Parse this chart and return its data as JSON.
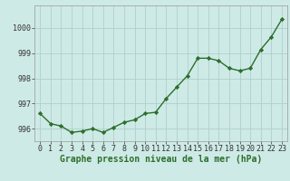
{
  "x": [
    0,
    1,
    2,
    3,
    4,
    5,
    6,
    7,
    8,
    9,
    10,
    11,
    12,
    13,
    14,
    15,
    16,
    17,
    18,
    19,
    20,
    21,
    22,
    23
  ],
  "y": [
    996.6,
    996.2,
    996.1,
    995.85,
    995.9,
    996.0,
    995.85,
    996.05,
    996.25,
    996.35,
    996.6,
    996.65,
    997.2,
    997.65,
    998.1,
    998.8,
    998.8,
    998.7,
    998.4,
    998.3,
    998.4,
    999.15,
    999.65,
    1000.35
  ],
  "line_color": "#2d6e2d",
  "marker": "D",
  "marker_size": 2.2,
  "line_width": 1.0,
  "background_color": "#ceeae6",
  "grid_color": "#b0cfcc",
  "ylabel_ticks": [
    996,
    997,
    998,
    999,
    1000
  ],
  "xlabel": "Graphe pression niveau de la mer (hPa)",
  "xlabel_fontsize": 7,
  "tick_fontsize": 6,
  "ylim": [
    995.5,
    1000.9
  ],
  "xlim": [
    -0.5,
    23.5
  ]
}
